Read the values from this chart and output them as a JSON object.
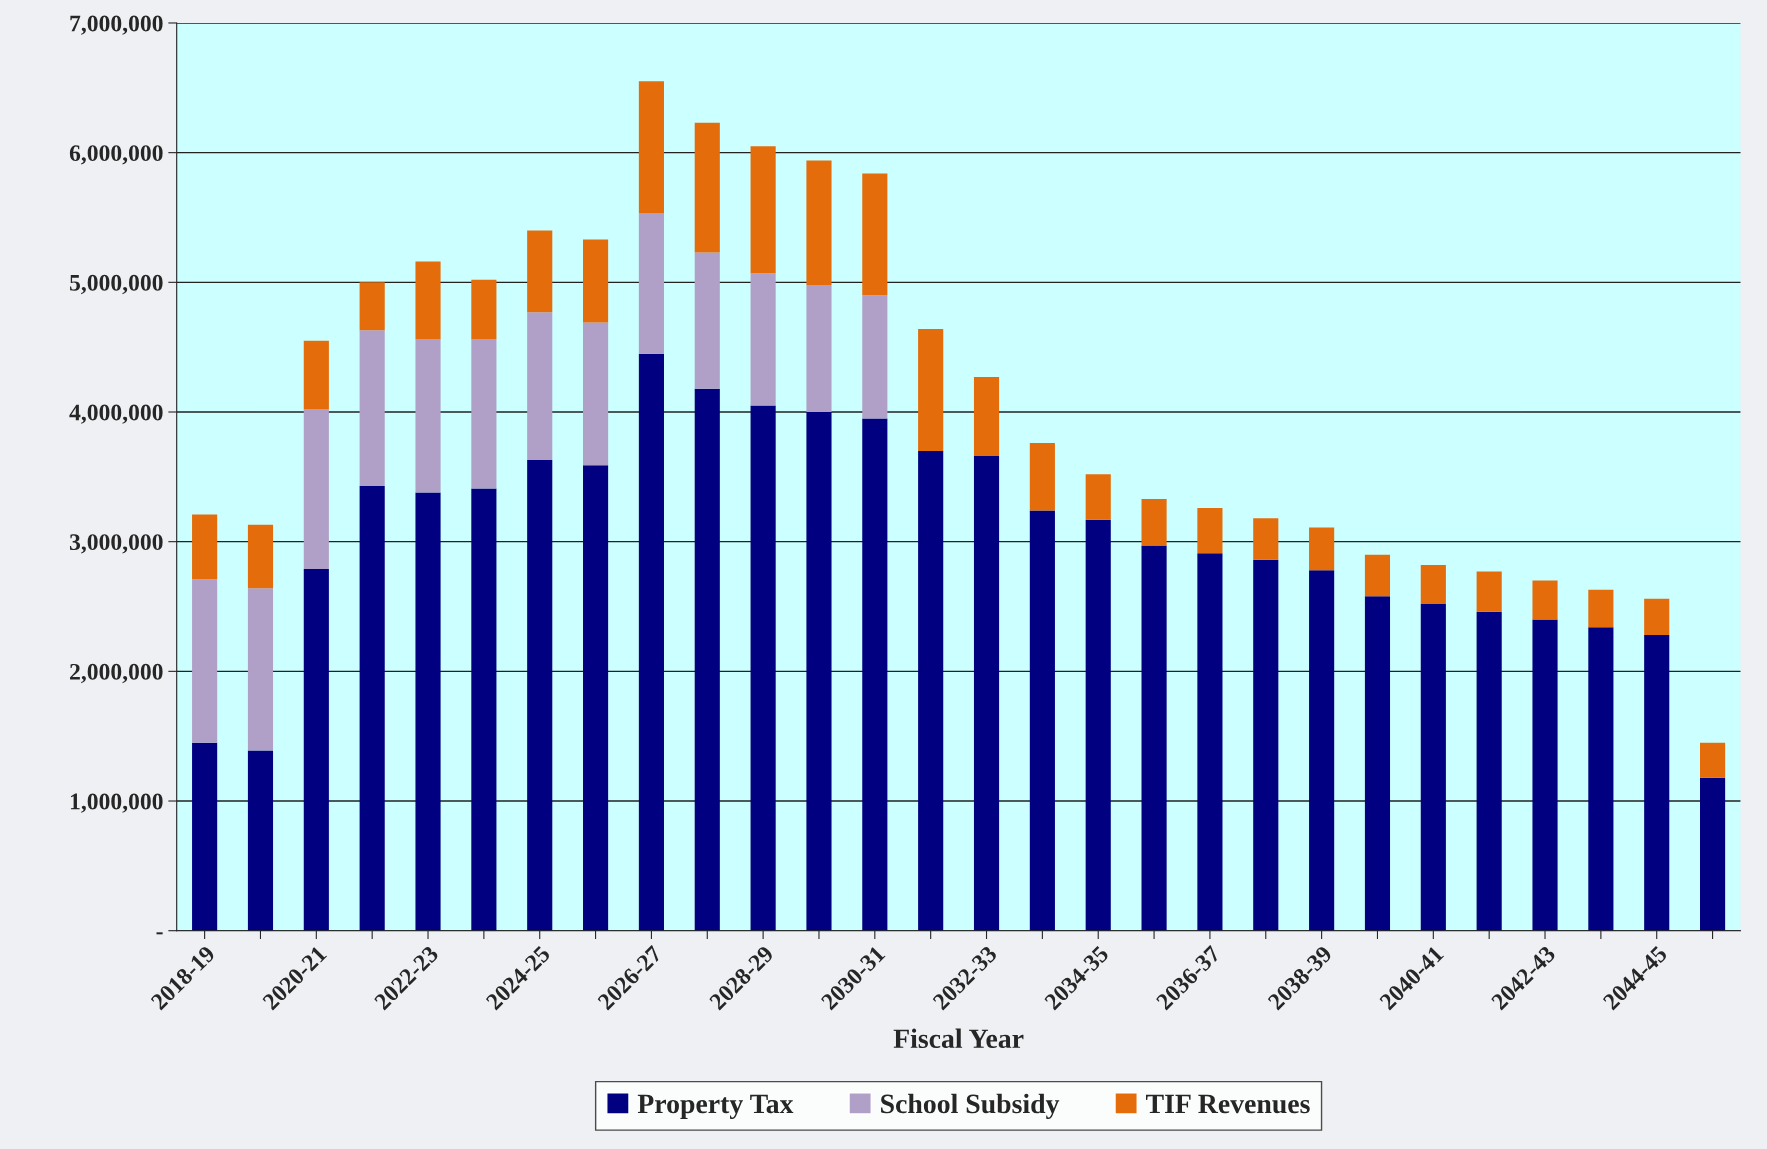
{
  "chart_data": {
    "type": "bar",
    "stacked": true,
    "xlabel": "Fiscal Year",
    "categories": [
      "2018-19",
      null,
      "2020-21",
      null,
      "2022-23",
      null,
      "2024-25",
      null,
      "2026-27",
      null,
      "2028-29",
      null,
      "2030-31",
      null,
      "2032-33",
      null,
      "2034-35",
      null,
      "2036-37",
      null,
      "2038-39",
      null,
      "2040-41",
      null,
      "2042-43",
      null,
      "2044-45",
      null
    ],
    "series": [
      {
        "name": "Property Tax",
        "color": "#000080",
        "values": [
          1450000,
          1390000,
          2790000,
          3430000,
          3380000,
          3410000,
          3630000,
          3590000,
          4450000,
          4180000,
          4050000,
          4000000,
          3950000,
          3700000,
          3660000,
          3240000,
          3170000,
          2970000,
          2910000,
          2860000,
          2780000,
          2580000,
          2520000,
          2460000,
          2400000,
          2340000,
          2280000,
          1180000
        ]
      },
      {
        "name": "School Subsidy",
        "color": "#b0a0c8",
        "values": [
          1260000,
          1250000,
          1230000,
          1200000,
          1180000,
          1150000,
          1140000,
          1100000,
          1080000,
          1050000,
          1020000,
          980000,
          950000,
          0,
          0,
          0,
          0,
          0,
          0,
          0,
          0,
          0,
          0,
          0,
          0,
          0,
          0,
          0
        ]
      },
      {
        "name": "TIF Revenues",
        "color": "#e46c0a",
        "values": [
          500000,
          490000,
          530000,
          370000,
          600000,
          460000,
          630000,
          640000,
          1020000,
          1000000,
          980000,
          960000,
          940000,
          940000,
          610000,
          520000,
          350000,
          360000,
          350000,
          320000,
          330000,
          320000,
          300000,
          310000,
          300000,
          290000,
          280000,
          270000
        ]
      }
    ],
    "ylim": [
      0,
      7000000
    ],
    "yticks": [
      {
        "value": 0,
        "label": "-"
      },
      {
        "value": 1000000,
        "label": "1,000,000"
      },
      {
        "value": 2000000,
        "label": "2,000,000"
      },
      {
        "value": 3000000,
        "label": "3,000,000"
      },
      {
        "value": 4000000,
        "label": "4,000,000"
      },
      {
        "value": 5000000,
        "label": "5,000,000"
      },
      {
        "value": 6000000,
        "label": "6,000,000"
      },
      {
        "value": 7000000,
        "label": "7,000,000"
      }
    ],
    "grid": "y",
    "legend": "bottom"
  }
}
